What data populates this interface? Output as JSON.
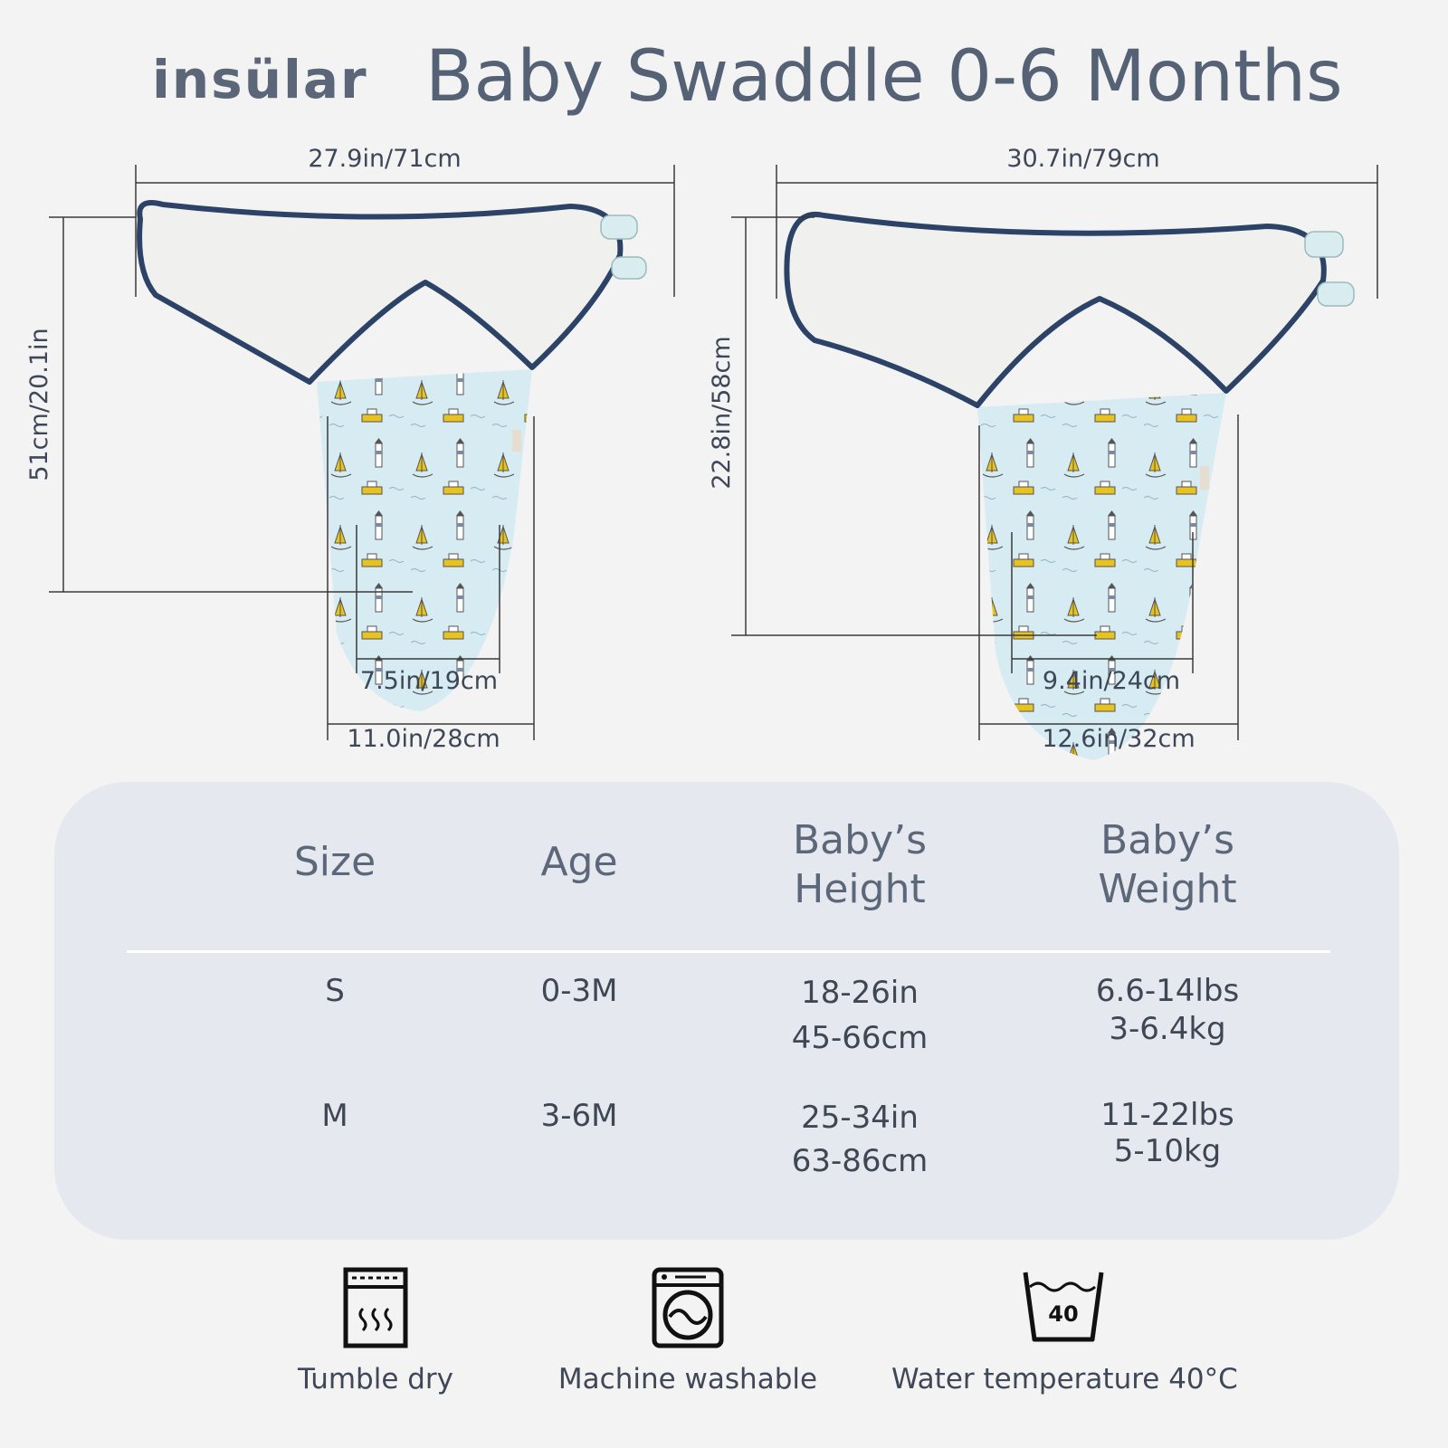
{
  "brand": {
    "logo_text": "insülar"
  },
  "header": {
    "title": "Baby Swaddle 0-6 Months"
  },
  "dimensions": {
    "small": {
      "width_top": "27.9in/71cm",
      "height": "51cm/20.1in",
      "bottom_inner": "7.5in/19cm",
      "bottom_outer": "11.0in/28cm"
    },
    "medium": {
      "width_top": "30.7in/79cm",
      "height": "22.8in/58cm",
      "bottom_inner": "9.4in/24cm",
      "bottom_outer": "12.6in/32cm"
    }
  },
  "size_table": {
    "headers": {
      "size": "Size",
      "age": "Age",
      "height_line1": "Baby’s",
      "height_line2": "Height",
      "weight_line1": "Baby’s",
      "weight_line2": "Weight"
    },
    "rows": [
      {
        "size": "S",
        "age": "0-3M",
        "height_in": "18-26in",
        "height_cm": "45-66cm",
        "weight_lbs": "6.6-14lbs",
        "weight_kg": "3-6.4kg"
      },
      {
        "size": "M",
        "age": "3-6M",
        "height_in": "25-34in",
        "height_cm": "63-86cm",
        "weight_lbs": "11-22lbs",
        "weight_kg": "5-10kg"
      }
    ]
  },
  "care": [
    {
      "icon": "tumble-dry-icon",
      "label": "Tumble dry"
    },
    {
      "icon": "machine-wash-icon",
      "label": "Machine washable"
    },
    {
      "icon": "wash-temperature-icon",
      "label": "Water temperature 40°C",
      "icon_text": "40"
    }
  ],
  "colors": {
    "background": "#f3f3f3",
    "text": "#4a5566",
    "panel": "#e5e9ef",
    "swaddle_trim": "#2c4266",
    "swaddle_inner": "#f0f1ee",
    "swaddle_print": "#d5ebf1",
    "print_accent": "#e8c21e"
  }
}
